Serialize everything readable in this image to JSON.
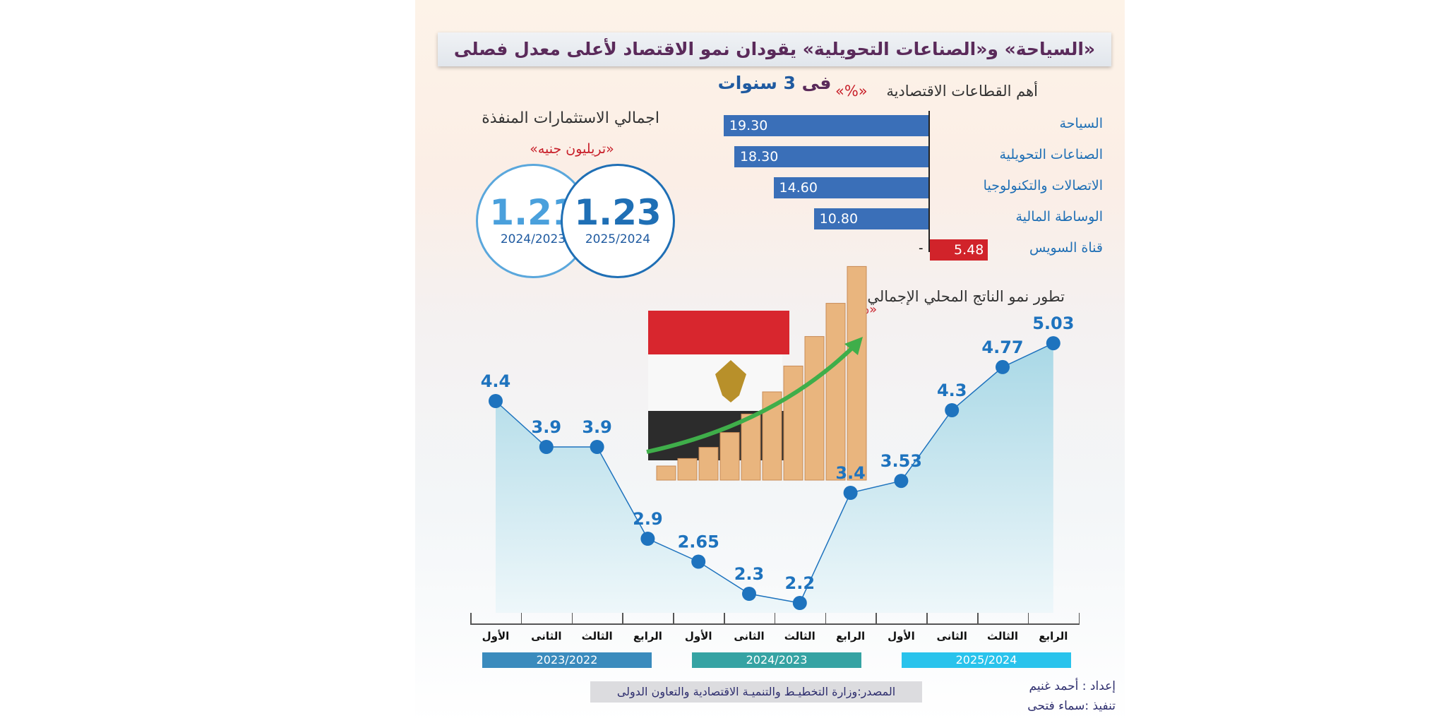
{
  "title": {
    "part1": "«السياحة» و«الصناعات التحويلية» يقودان نمو الاقتصاد لأعلى معدل فصلى فى",
    "part2": "3 سنوات"
  },
  "colors": {
    "bar_blue": "#3a6fb8",
    "bar_red": "#d1232a",
    "point": "#1e73be",
    "area": "#a9d8e6",
    "year1": "#3a8bbd",
    "year2": "#35a3a3",
    "year3": "#29c3ec"
  },
  "investments": {
    "title": "اجمالي الاستثمارات المنفذة",
    "unit": "«تريليون جنيه»",
    "items": [
      {
        "value": "1.21",
        "year": "2024/2023"
      },
      {
        "value": "1.23",
        "year": "2025/2024"
      }
    ]
  },
  "illustration": {
    "icons": [
      "egypt-flag-map",
      "growth-arrow-icon",
      "coin-stacks"
    ]
  },
  "chart_data": [
    {
      "type": "bar",
      "orientation": "horizontal",
      "title": "أهم القطاعات الاقتصادية",
      "unit": "«%»",
      "categories": [
        "السياحة",
        "الصناعات التحويلية",
        "الاتصالات والتكنولوجيا",
        "الوساطة المالية",
        "قناة السويس"
      ],
      "values": [
        19.3,
        18.3,
        14.6,
        10.8,
        -5.48
      ],
      "labels": [
        "19.30",
        "18.30",
        "14.60",
        "10.80",
        "5.48"
      ],
      "negative_marker": "-"
    },
    {
      "type": "area",
      "title": "تطور نمو الناتج المحلي الإجمالي",
      "unit": "«%»",
      "x": [
        "الأول",
        "الثانى",
        "الثالث",
        "الرابع",
        "الأول",
        "الثانى",
        "الثالث",
        "الرابع",
        "الأول",
        "الثانى",
        "الثالث",
        "الرابع"
      ],
      "groups": [
        "2023/2022",
        "2024/2023",
        "2025/2024"
      ],
      "values": [
        4.4,
        3.9,
        3.9,
        2.9,
        2.65,
        2.3,
        2.2,
        3.4,
        3.53,
        4.3,
        4.77,
        5.03
      ],
      "labels": [
        "4.4",
        "3.9",
        "3.9",
        "2.9",
        "2.65",
        "2.3",
        "2.2",
        "3.4",
        "3.53",
        "4.3",
        "4.77",
        "5.03"
      ]
    }
  ],
  "footer": {
    "source": "المصدر:وزارة التخطيـط والتنميـة الاقتصادية والتعاون الدولى",
    "prepared": "إعداد : أحمد غنيم",
    "designed": "تنفيذ :سماء فتحى"
  }
}
